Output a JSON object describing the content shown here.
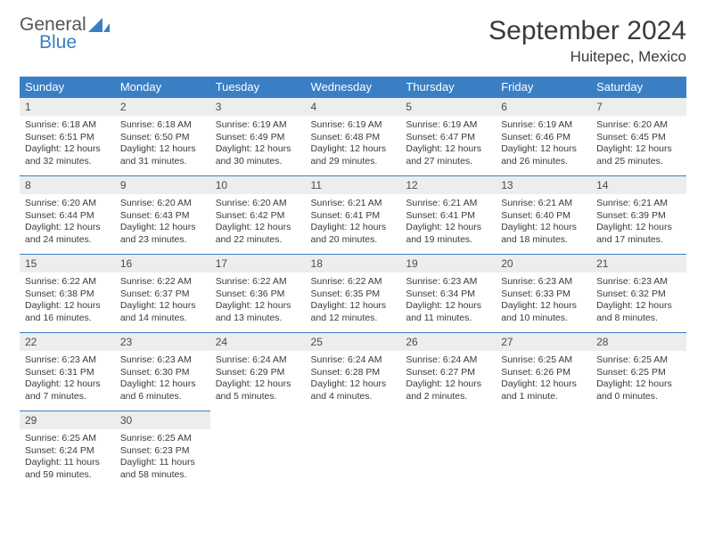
{
  "logo": {
    "line1": "General",
    "line2": "Blue"
  },
  "title": "September 2024",
  "location": "Huitepec, Mexico",
  "colors": {
    "header_bg": "#3a7fc4",
    "header_text": "#ffffff",
    "daynum_bg": "#eceeee",
    "border": "#3a7fc4",
    "text": "#3a3a3a",
    "logo_blue": "#3a7fc4",
    "logo_gray": "#555555",
    "page_bg": "#ffffff"
  },
  "calendar": {
    "weekdays": [
      "Sunday",
      "Monday",
      "Tuesday",
      "Wednesday",
      "Thursday",
      "Friday",
      "Saturday"
    ],
    "first_weekday_index": 0,
    "days": [
      {
        "n": 1,
        "sunrise": "6:18 AM",
        "sunset": "6:51 PM",
        "daylight": "12 hours and 32 minutes."
      },
      {
        "n": 2,
        "sunrise": "6:18 AM",
        "sunset": "6:50 PM",
        "daylight": "12 hours and 31 minutes."
      },
      {
        "n": 3,
        "sunrise": "6:19 AM",
        "sunset": "6:49 PM",
        "daylight": "12 hours and 30 minutes."
      },
      {
        "n": 4,
        "sunrise": "6:19 AM",
        "sunset": "6:48 PM",
        "daylight": "12 hours and 29 minutes."
      },
      {
        "n": 5,
        "sunrise": "6:19 AM",
        "sunset": "6:47 PM",
        "daylight": "12 hours and 27 minutes."
      },
      {
        "n": 6,
        "sunrise": "6:19 AM",
        "sunset": "6:46 PM",
        "daylight": "12 hours and 26 minutes."
      },
      {
        "n": 7,
        "sunrise": "6:20 AM",
        "sunset": "6:45 PM",
        "daylight": "12 hours and 25 minutes."
      },
      {
        "n": 8,
        "sunrise": "6:20 AM",
        "sunset": "6:44 PM",
        "daylight": "12 hours and 24 minutes."
      },
      {
        "n": 9,
        "sunrise": "6:20 AM",
        "sunset": "6:43 PM",
        "daylight": "12 hours and 23 minutes."
      },
      {
        "n": 10,
        "sunrise": "6:20 AM",
        "sunset": "6:42 PM",
        "daylight": "12 hours and 22 minutes."
      },
      {
        "n": 11,
        "sunrise": "6:21 AM",
        "sunset": "6:41 PM",
        "daylight": "12 hours and 20 minutes."
      },
      {
        "n": 12,
        "sunrise": "6:21 AM",
        "sunset": "6:41 PM",
        "daylight": "12 hours and 19 minutes."
      },
      {
        "n": 13,
        "sunrise": "6:21 AM",
        "sunset": "6:40 PM",
        "daylight": "12 hours and 18 minutes."
      },
      {
        "n": 14,
        "sunrise": "6:21 AM",
        "sunset": "6:39 PM",
        "daylight": "12 hours and 17 minutes."
      },
      {
        "n": 15,
        "sunrise": "6:22 AM",
        "sunset": "6:38 PM",
        "daylight": "12 hours and 16 minutes."
      },
      {
        "n": 16,
        "sunrise": "6:22 AM",
        "sunset": "6:37 PM",
        "daylight": "12 hours and 14 minutes."
      },
      {
        "n": 17,
        "sunrise": "6:22 AM",
        "sunset": "6:36 PM",
        "daylight": "12 hours and 13 minutes."
      },
      {
        "n": 18,
        "sunrise": "6:22 AM",
        "sunset": "6:35 PM",
        "daylight": "12 hours and 12 minutes."
      },
      {
        "n": 19,
        "sunrise": "6:23 AM",
        "sunset": "6:34 PM",
        "daylight": "12 hours and 11 minutes."
      },
      {
        "n": 20,
        "sunrise": "6:23 AM",
        "sunset": "6:33 PM",
        "daylight": "12 hours and 10 minutes."
      },
      {
        "n": 21,
        "sunrise": "6:23 AM",
        "sunset": "6:32 PM",
        "daylight": "12 hours and 8 minutes."
      },
      {
        "n": 22,
        "sunrise": "6:23 AM",
        "sunset": "6:31 PM",
        "daylight": "12 hours and 7 minutes."
      },
      {
        "n": 23,
        "sunrise": "6:23 AM",
        "sunset": "6:30 PM",
        "daylight": "12 hours and 6 minutes."
      },
      {
        "n": 24,
        "sunrise": "6:24 AM",
        "sunset": "6:29 PM",
        "daylight": "12 hours and 5 minutes."
      },
      {
        "n": 25,
        "sunrise": "6:24 AM",
        "sunset": "6:28 PM",
        "daylight": "12 hours and 4 minutes."
      },
      {
        "n": 26,
        "sunrise": "6:24 AM",
        "sunset": "6:27 PM",
        "daylight": "12 hours and 2 minutes."
      },
      {
        "n": 27,
        "sunrise": "6:25 AM",
        "sunset": "6:26 PM",
        "daylight": "12 hours and 1 minute."
      },
      {
        "n": 28,
        "sunrise": "6:25 AM",
        "sunset": "6:25 PM",
        "daylight": "12 hours and 0 minutes."
      },
      {
        "n": 29,
        "sunrise": "6:25 AM",
        "sunset": "6:24 PM",
        "daylight": "11 hours and 59 minutes."
      },
      {
        "n": 30,
        "sunrise": "6:25 AM",
        "sunset": "6:23 PM",
        "daylight": "11 hours and 58 minutes."
      }
    ],
    "labels": {
      "sunrise": "Sunrise:",
      "sunset": "Sunset:",
      "daylight": "Daylight:"
    }
  }
}
